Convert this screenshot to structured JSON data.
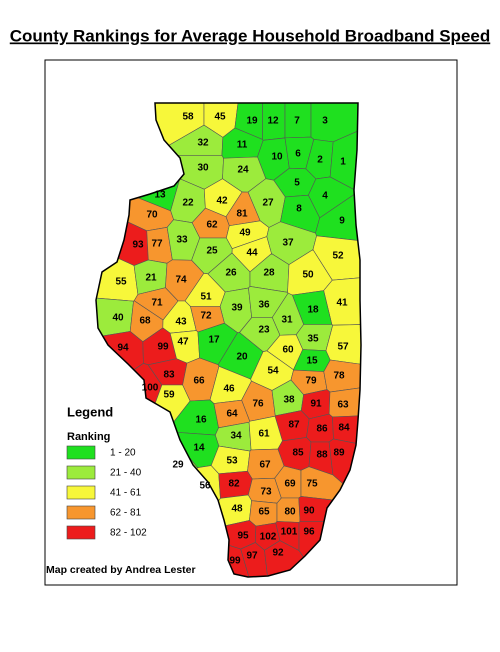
{
  "title": "County Rankings for Average Household Broadband Speed",
  "legend": {
    "title": "Legend",
    "subtitle": "Ranking",
    "items": [
      {
        "label": "1 - 20",
        "color": "#1fe01f"
      },
      {
        "label": "21 - 40",
        "color": "#9ceb3c"
      },
      {
        "label": "41 - 61",
        "color": "#f7f73a"
      },
      {
        "label": "62 - 81",
        "color": "#f7962e"
      },
      {
        "label": "82 - 102",
        "color": "#ec1c1c"
      }
    ]
  },
  "counties": [
    58,
    45,
    19,
    12,
    7,
    3,
    32,
    11,
    10,
    6,
    2,
    1,
    30,
    24,
    5,
    4,
    13,
    22,
    42,
    81,
    27,
    8,
    9,
    70,
    62,
    49,
    93,
    77,
    33,
    44,
    37,
    52,
    25,
    26,
    28,
    50,
    55,
    21,
    74,
    51,
    41,
    71,
    39,
    36,
    18,
    40,
    68,
    43,
    72,
    31,
    23,
    35,
    94,
    99,
    47,
    17,
    20,
    60,
    15,
    57,
    100,
    83,
    66,
    46,
    54,
    79,
    78,
    59,
    76,
    38,
    91,
    63,
    16,
    64,
    87,
    86,
    84,
    34,
    61,
    14,
    85,
    88,
    89,
    29,
    53,
    67,
    56,
    82,
    73,
    69,
    75,
    48,
    65,
    80,
    90,
    95,
    102,
    101,
    96,
    99,
    97,
    92
  ],
  "credit": "Map created by Andrea Lester"
}
